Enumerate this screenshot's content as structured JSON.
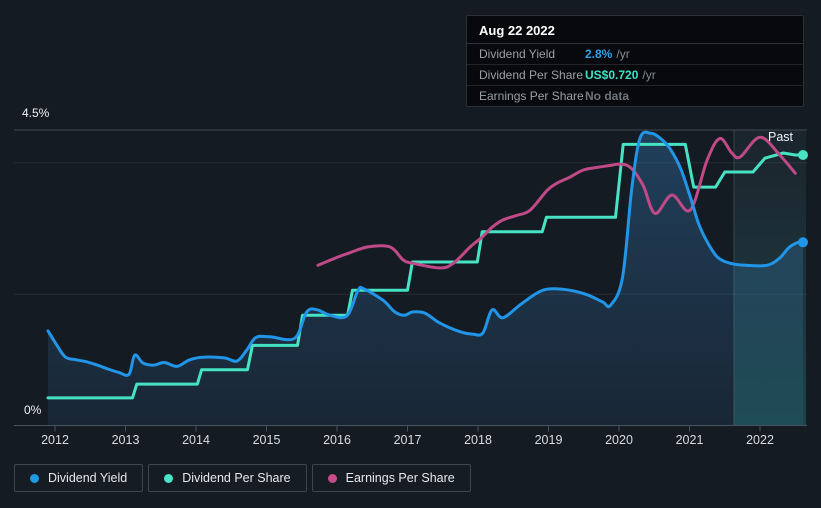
{
  "tooltip": {
    "date": "Aug 22 2022",
    "rows": [
      {
        "label": "Dividend Yield",
        "value": "2.8%",
        "suffix": "/yr",
        "value_color": "#2ea1e8"
      },
      {
        "label": "Dividend Per Share",
        "value": "US$0.720",
        "suffix": "/yr",
        "value_color": "#3de2c5"
      },
      {
        "label": "Earnings Per Share",
        "value": "No data",
        "suffix": "",
        "value_color": "#6f757c"
      }
    ]
  },
  "axis": {
    "y_top_label": "4.5%",
    "y_bottom_label": "0%"
  },
  "chart": {
    "past_label": "Past"
  },
  "legend": {
    "items": [
      {
        "label": "Dividend Yield",
        "color": "#1e9ae3"
      },
      {
        "label": "Dividend Per Share",
        "color": "#47e5c6"
      },
      {
        "label": "Earnings Per Share",
        "color": "#c64c8a"
      }
    ]
  },
  "chart_data": {
    "type": "line",
    "title": "Dividend history (yield, dividend per share, earnings per share)",
    "x_axis": {
      "range": [
        2011.9,
        2022.65
      ],
      "ticks": [
        {
          "x": 2012,
          "label": "2012"
        },
        {
          "x": 2013,
          "label": "2013"
        },
        {
          "x": 2014,
          "label": "2014"
        },
        {
          "x": 2015,
          "label": "2015"
        },
        {
          "x": 2016,
          "label": "2016"
        },
        {
          "x": 2017,
          "label": "2017"
        },
        {
          "x": 2018,
          "label": "2018"
        },
        {
          "x": 2019,
          "label": "2019"
        },
        {
          "x": 2020,
          "label": "2020"
        },
        {
          "x": 2021,
          "label": "2021"
        },
        {
          "x": 2022,
          "label": "2022"
        }
      ]
    },
    "y_axis": {
      "unit": "%",
      "range": [
        0,
        4.5
      ],
      "max_label": "4.5%",
      "min_label": "0%",
      "grid_values": [
        2,
        4
      ]
    },
    "past_region_start": 2021.63,
    "legend_position": "bottom-left",
    "series": [
      {
        "name": "Dividend Yield",
        "color": "#2196e8",
        "smooth": true,
        "area": true,
        "end_dot": true,
        "end_value": "2.8% /yr",
        "points": [
          [
            2011.9,
            1.44
          ],
          [
            2012.04,
            1.2
          ],
          [
            2012.15,
            1.04
          ],
          [
            2012.3,
            1.0
          ],
          [
            2012.45,
            0.97
          ],
          [
            2012.6,
            0.92
          ],
          [
            2012.75,
            0.86
          ],
          [
            2012.9,
            0.81
          ],
          [
            2013.05,
            0.78
          ],
          [
            2013.13,
            1.07
          ],
          [
            2013.25,
            0.95
          ],
          [
            2013.4,
            0.92
          ],
          [
            2013.55,
            0.96
          ],
          [
            2013.73,
            0.9
          ],
          [
            2013.91,
            1.0
          ],
          [
            2014.1,
            1.04
          ],
          [
            2014.4,
            1.03
          ],
          [
            2014.58,
            0.98
          ],
          [
            2014.72,
            1.15
          ],
          [
            2014.85,
            1.34
          ],
          [
            2015.05,
            1.35
          ],
          [
            2015.4,
            1.33
          ],
          [
            2015.57,
            1.73
          ],
          [
            2015.72,
            1.76
          ],
          [
            2015.9,
            1.68
          ],
          [
            2016.14,
            1.67
          ],
          [
            2016.3,
            2.06
          ],
          [
            2016.38,
            2.08
          ],
          [
            2016.65,
            1.91
          ],
          [
            2016.82,
            1.73
          ],
          [
            2016.95,
            1.68
          ],
          [
            2017.08,
            1.73
          ],
          [
            2017.25,
            1.71
          ],
          [
            2017.46,
            1.56
          ],
          [
            2017.74,
            1.43
          ],
          [
            2017.93,
            1.39
          ],
          [
            2018.07,
            1.41
          ],
          [
            2018.2,
            1.76
          ],
          [
            2018.35,
            1.64
          ],
          [
            2018.6,
            1.84
          ],
          [
            2018.84,
            2.02
          ],
          [
            2019.02,
            2.08
          ],
          [
            2019.3,
            2.06
          ],
          [
            2019.55,
            1.99
          ],
          [
            2019.77,
            1.88
          ],
          [
            2019.88,
            1.83
          ],
          [
            2020.05,
            2.25
          ],
          [
            2020.18,
            3.6
          ],
          [
            2020.3,
            4.38
          ],
          [
            2020.45,
            4.45
          ],
          [
            2020.58,
            4.38
          ],
          [
            2020.72,
            4.22
          ],
          [
            2020.88,
            3.9
          ],
          [
            2021.02,
            3.45
          ],
          [
            2021.13,
            3.07
          ],
          [
            2021.26,
            2.78
          ],
          [
            2021.4,
            2.56
          ],
          [
            2021.58,
            2.47
          ],
          [
            2021.8,
            2.44
          ],
          [
            2022.1,
            2.44
          ],
          [
            2022.28,
            2.55
          ],
          [
            2022.4,
            2.7
          ],
          [
            2022.52,
            2.78
          ],
          [
            2022.61,
            2.79
          ]
        ]
      },
      {
        "name": "Dividend Per Share",
        "color": "#45e3c3",
        "smooth": false,
        "area": false,
        "end_dot": true,
        "end_value": "US$0.720 /yr",
        "points": [
          [
            2011.9,
            0.42
          ],
          [
            2013.1,
            0.42
          ],
          [
            2013.16,
            0.63
          ],
          [
            2014.02,
            0.63
          ],
          [
            2014.08,
            0.85
          ],
          [
            2014.73,
            0.85
          ],
          [
            2014.8,
            1.22
          ],
          [
            2015.44,
            1.22
          ],
          [
            2015.51,
            1.68
          ],
          [
            2016.15,
            1.68
          ],
          [
            2016.22,
            2.06
          ],
          [
            2017.0,
            2.06
          ],
          [
            2017.07,
            2.49
          ],
          [
            2017.99,
            2.49
          ],
          [
            2018.06,
            2.95
          ],
          [
            2018.91,
            2.95
          ],
          [
            2018.97,
            3.17
          ],
          [
            2019.95,
            3.17
          ],
          [
            2020.06,
            4.28
          ],
          [
            2020.94,
            4.28
          ],
          [
            2021.06,
            3.63
          ],
          [
            2021.37,
            3.63
          ],
          [
            2021.5,
            3.86
          ],
          [
            2021.9,
            3.86
          ],
          [
            2022.07,
            4.07
          ],
          [
            2022.33,
            4.15
          ],
          [
            2022.5,
            4.12
          ],
          [
            2022.61,
            4.12
          ]
        ]
      },
      {
        "name": "Earnings Per Share",
        "color": "#c04a87",
        "smooth": true,
        "area": false,
        "end_dot": false,
        "end_value": "No data",
        "points": [
          [
            2015.73,
            2.44
          ],
          [
            2016.0,
            2.56
          ],
          [
            2016.18,
            2.63
          ],
          [
            2016.44,
            2.72
          ],
          [
            2016.75,
            2.72
          ],
          [
            2016.94,
            2.52
          ],
          [
            2017.08,
            2.47
          ],
          [
            2017.46,
            2.4
          ],
          [
            2017.65,
            2.47
          ],
          [
            2017.89,
            2.72
          ],
          [
            2018.06,
            2.87
          ],
          [
            2018.2,
            3.02
          ],
          [
            2018.35,
            3.13
          ],
          [
            2018.55,
            3.2
          ],
          [
            2018.74,
            3.28
          ],
          [
            2018.98,
            3.58
          ],
          [
            2019.12,
            3.69
          ],
          [
            2019.3,
            3.78
          ],
          [
            2019.49,
            3.89
          ],
          [
            2019.69,
            3.93
          ],
          [
            2019.87,
            3.96
          ],
          [
            2020.01,
            3.98
          ],
          [
            2020.16,
            3.93
          ],
          [
            2020.34,
            3.66
          ],
          [
            2020.51,
            3.23
          ],
          [
            2020.75,
            3.51
          ],
          [
            2021.01,
            3.28
          ],
          [
            2021.25,
            4.04
          ],
          [
            2021.43,
            4.37
          ],
          [
            2021.6,
            4.15
          ],
          [
            2021.72,
            4.09
          ],
          [
            2022.0,
            4.39
          ],
          [
            2022.28,
            4.12
          ],
          [
            2022.5,
            3.84
          ]
        ]
      }
    ]
  }
}
